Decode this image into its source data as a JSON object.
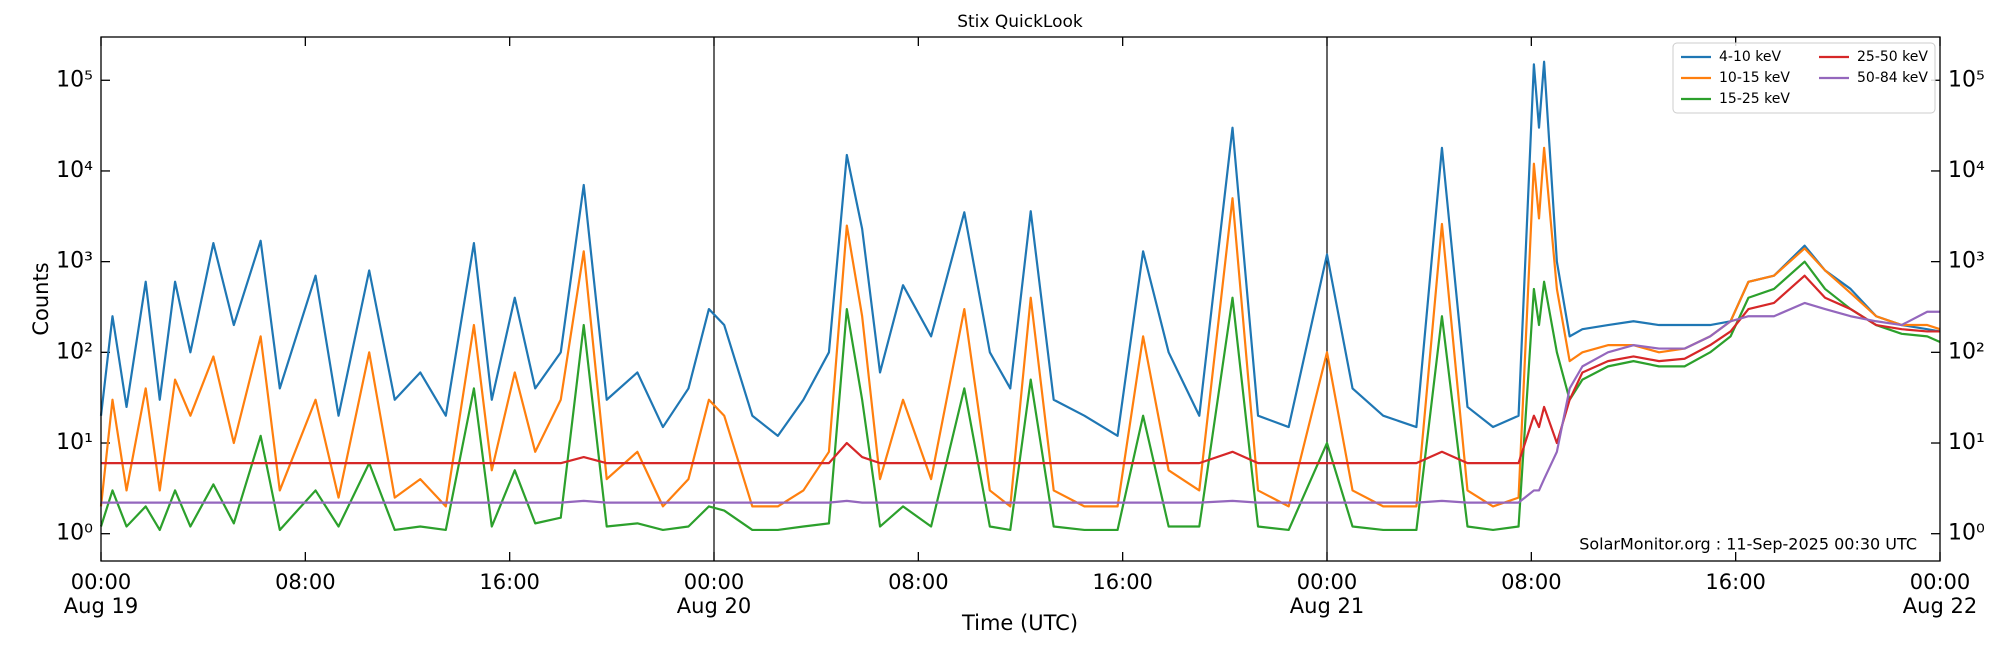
{
  "chart_data": {
    "type": "line",
    "title": "Stix QuickLook",
    "xlabel": "Time (UTC)",
    "ylabel": "Counts",
    "annotation": "SolarMonitor.org : 11-Sep-2025 00:30 UTC",
    "log_y": true,
    "legend": "upper right",
    "xlim": [
      0,
      72
    ],
    "ylim": [
      0.5,
      300000
    ],
    "xticks": [
      {
        "value": 0,
        "label": "00:00\nAug 19"
      },
      {
        "value": 8,
        "label": "08:00"
      },
      {
        "value": 16,
        "label": "16:00"
      },
      {
        "value": 24,
        "label": "00:00\nAug 20"
      },
      {
        "value": 32,
        "label": "08:00"
      },
      {
        "value": 40,
        "label": "16:00"
      },
      {
        "value": 48,
        "label": "00:00\nAug 21"
      },
      {
        "value": 56,
        "label": "08:00"
      },
      {
        "value": 64,
        "label": "16:00"
      },
      {
        "value": 72,
        "label": "00:00\nAug 22"
      }
    ],
    "yticks": [
      {
        "value": 1,
        "label": "10⁰"
      },
      {
        "value": 10,
        "label": "10¹"
      },
      {
        "value": 100,
        "label": "10²"
      },
      {
        "value": 1000,
        "label": "10³"
      },
      {
        "value": 10000,
        "label": "10⁴"
      },
      {
        "value": 100000,
        "label": "10⁵"
      }
    ],
    "x": [
      0,
      0.45,
      1,
      1.75,
      2.3,
      2.9,
      3.5,
      4.4,
      5.2,
      6.25,
      7,
      8.4,
      9.3,
      10.5,
      11.5,
      12.5,
      13.5,
      14.6,
      15.3,
      16.2,
      17,
      18,
      18.9,
      19.8,
      21,
      22,
      23,
      23.8,
      24.4,
      25.5,
      26.5,
      27.5,
      28.5,
      29.2,
      29.8,
      30.5,
      31.4,
      32.5,
      33.8,
      34.8,
      35.6,
      36.4,
      37.3,
      38.5,
      39.8,
      40.8,
      41.8,
      43,
      44.3,
      45.3,
      46.5,
      48,
      49,
      50.2,
      51.5,
      52.5,
      53.5,
      54.5,
      55.5,
      56.1,
      56.3,
      56.5,
      57,
      57.5,
      58,
      59,
      60,
      61,
      62,
      63,
      63.8,
      64.5,
      65.5,
      66.7,
      67.5,
      68.5,
      69.5,
      70.5,
      71.5,
      72
    ],
    "series": [
      {
        "name": "4-10 keV",
        "color": "#1f77b4",
        "values": [
          20,
          250,
          25,
          600,
          30,
          600,
          100,
          1600,
          200,
          1700,
          40,
          700,
          20,
          800,
          30,
          60,
          20,
          1600,
          30,
          400,
          40,
          100,
          7000,
          30,
          60,
          15,
          40,
          300,
          200,
          20,
          12,
          30,
          100,
          15000,
          2300,
          60,
          550,
          150,
          3500,
          100,
          40,
          3600,
          30,
          20,
          12,
          1300,
          100,
          20,
          30000,
          20,
          15,
          1200,
          40,
          20,
          15,
          18000,
          25,
          15,
          20,
          150000,
          30000,
          160000,
          1000,
          150,
          180,
          200,
          220,
          200,
          200,
          200,
          220,
          600,
          700,
          1500,
          800,
          500,
          250,
          200,
          180,
          170
        ]
      },
      {
        "name": "10-15 keV",
        "color": "#ff7f0e",
        "values": [
          2,
          30,
          3,
          40,
          3,
          50,
          20,
          90,
          10,
          150,
          3,
          30,
          2.5,
          100,
          2.5,
          4,
          2,
          200,
          5,
          60,
          8,
          30,
          1300,
          4,
          8,
          2,
          4,
          30,
          20,
          2,
          2,
          3,
          8,
          2500,
          250,
          4,
          30,
          4,
          300,
          3,
          2,
          400,
          3,
          2,
          2,
          150,
          5,
          3,
          5000,
          3,
          2,
          100,
          3,
          2,
          2,
          2600,
          3,
          2,
          2.5,
          12000,
          3000,
          18000,
          500,
          80,
          100,
          120,
          120,
          100,
          110,
          150,
          220,
          600,
          700,
          1400,
          800,
          450,
          250,
          200,
          200,
          180
        ]
      },
      {
        "name": "15-25 keV",
        "color": "#2ca02c",
        "values": [
          1.2,
          3,
          1.2,
          2,
          1.1,
          3,
          1.2,
          3.5,
          1.3,
          12,
          1.1,
          3,
          1.2,
          6,
          1.1,
          1.2,
          1.1,
          40,
          1.2,
          5,
          1.3,
          1.5,
          200,
          1.2,
          1.3,
          1.1,
          1.2,
          2,
          1.8,
          1.1,
          1.1,
          1.2,
          1.3,
          300,
          30,
          1.2,
          2,
          1.2,
          40,
          1.2,
          1.1,
          50,
          1.2,
          1.1,
          1.1,
          20,
          1.2,
          1.2,
          400,
          1.2,
          1.1,
          10,
          1.2,
          1.1,
          1.1,
          250,
          1.2,
          1.1,
          1.2,
          500,
          200,
          600,
          100,
          30,
          50,
          70,
          80,
          70,
          70,
          100,
          150,
          400,
          500,
          1000,
          500,
          300,
          200,
          160,
          150,
          130
        ]
      },
      {
        "name": "25-50 keV",
        "color": "#d62728",
        "values": [
          6,
          6,
          6,
          6,
          6,
          6,
          6,
          6,
          6,
          6,
          6,
          6,
          6,
          6,
          6,
          6,
          6,
          6,
          6,
          6,
          6,
          6,
          7,
          6,
          6,
          6,
          6,
          6,
          6,
          6,
          6,
          6,
          6,
          10,
          7,
          6,
          6,
          6,
          6,
          6,
          6,
          6,
          6,
          6,
          6,
          6,
          6,
          6,
          8,
          6,
          6,
          6,
          6,
          6,
          6,
          8,
          6,
          6,
          6,
          20,
          15,
          25,
          10,
          30,
          60,
          80,
          90,
          80,
          85,
          120,
          170,
          300,
          350,
          700,
          400,
          300,
          200,
          180,
          170,
          170
        ]
      },
      {
        "name": "50-84 keV",
        "color": "#9467bd",
        "values": [
          2.2,
          2.2,
          2.2,
          2.2,
          2.2,
          2.2,
          2.2,
          2.2,
          2.2,
          2.2,
          2.2,
          2.2,
          2.2,
          2.2,
          2.2,
          2.2,
          2.2,
          2.2,
          2.2,
          2.2,
          2.2,
          2.2,
          2.3,
          2.2,
          2.2,
          2.2,
          2.2,
          2.2,
          2.2,
          2.2,
          2.2,
          2.2,
          2.2,
          2.3,
          2.2,
          2.2,
          2.2,
          2.2,
          2.2,
          2.2,
          2.2,
          2.2,
          2.2,
          2.2,
          2.2,
          2.2,
          2.2,
          2.2,
          2.3,
          2.2,
          2.2,
          2.2,
          2.2,
          2.2,
          2.2,
          2.3,
          2.2,
          2.2,
          2.2,
          3,
          3,
          4,
          8,
          40,
          70,
          100,
          120,
          110,
          110,
          150,
          220,
          250,
          250,
          350,
          300,
          250,
          220,
          200,
          280,
          280
        ]
      }
    ]
  }
}
